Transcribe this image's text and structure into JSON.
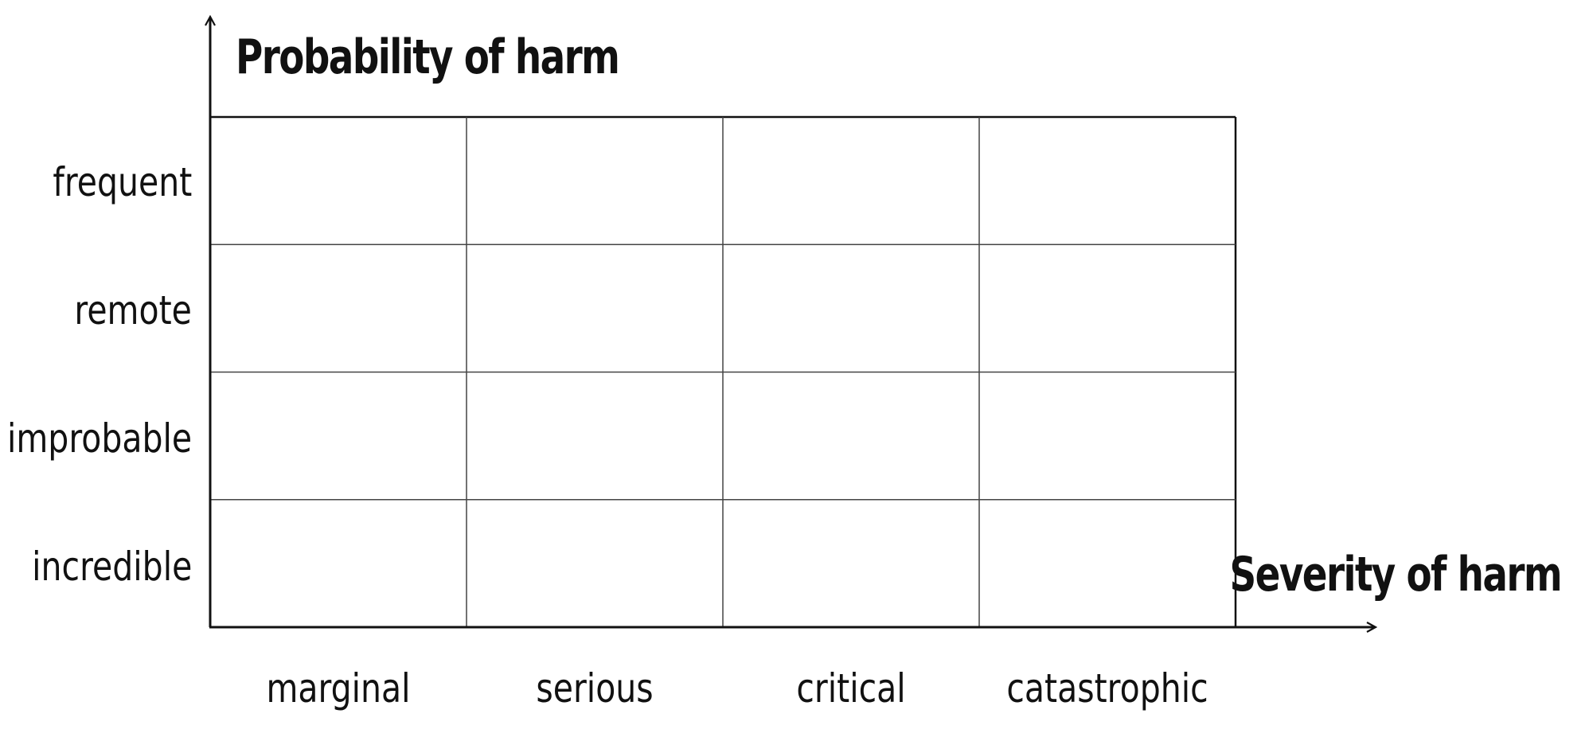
{
  "diagram": {
    "y_axis_title": "Probability of harm",
    "x_axis_title": "Severity of harm",
    "rows": [
      "frequent",
      "remote",
      "improbable",
      "incredible"
    ],
    "columns": [
      "marginal",
      "serious",
      "critical",
      "catastrophic"
    ],
    "colors": {
      "line": "#111111",
      "grid": "#444444",
      "text": "#111111",
      "background": "#ffffff"
    }
  }
}
